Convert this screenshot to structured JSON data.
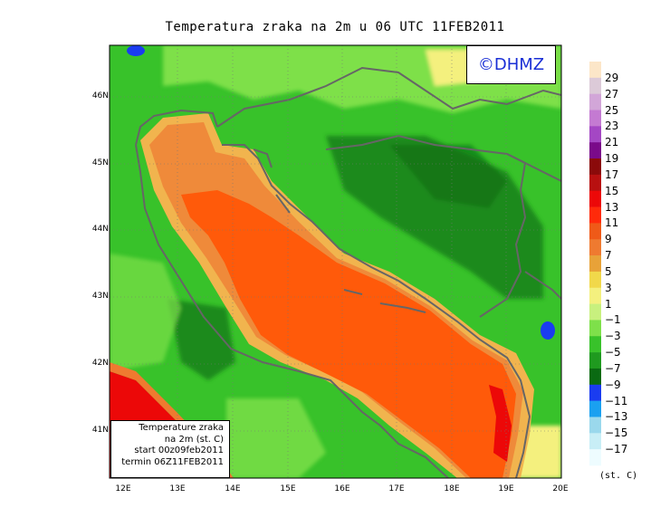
{
  "title": "Temperatura zraka na 2m u 06 UTC 11FEB2011",
  "logo_text": "©DHMZ",
  "infobox": {
    "line1": "Temperature zraka",
    "line2": "na 2m (st. C)",
    "line3": "start 00z09feb2011",
    "line4": "termin 06Z11FEB2011"
  },
  "axes": {
    "lat_labels": [
      "46N",
      "45N",
      "44N",
      "43N",
      "42N",
      "41N"
    ],
    "lon_labels": [
      "12E",
      "13E",
      "14E",
      "15E",
      "16E",
      "17E",
      "18E",
      "19E",
      "20E"
    ]
  },
  "legend": {
    "unit": "(st. C)",
    "labels": [
      "29",
      "27",
      "25",
      "23",
      "21",
      "19",
      "17",
      "15",
      "13",
      "11",
      "9",
      "7",
      "5",
      "3",
      "1",
      "−1",
      "−3",
      "−5",
      "−7",
      "−9",
      "−11",
      "−13",
      "−15",
      "−17"
    ],
    "colors": [
      "#fce6c8",
      "#dccad8",
      "#d2a6d8",
      "#c47ad2",
      "#a447c4",
      "#7a0a8a",
      "#8b0a0a",
      "#b81010",
      "#ec0808",
      "#ff2a0a",
      "#ef5a18",
      "#ef7a30",
      "#e8a238",
      "#f1d84a",
      "#f4f07e",
      "#c8f07e",
      "#7ee04a",
      "#38c22a",
      "#1f9a1f",
      "#0a6a12",
      "#1a3cf0",
      "#1aa0f0",
      "#9ad8ec",
      "#c8eef6",
      "#eefcff"
    ]
  },
  "colors": {
    "sea_warm": "#ff5a0a",
    "sea_mid": "#ef8a3a",
    "sea_edge": "#f1b44e",
    "land_mid": "#38c22a",
    "land_dark": "#1f8a1f",
    "land_light": "#7ee04a",
    "hot_south": "#ec0808",
    "coast": "#666666"
  }
}
